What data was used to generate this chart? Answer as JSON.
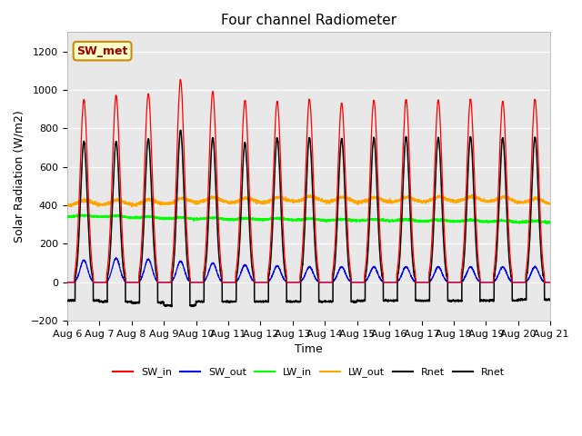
{
  "title": "Four channel Radiometer",
  "xlabel": "Time",
  "ylabel": "Solar Radiation (W/m2)",
  "ylim": [
    -200,
    1300
  ],
  "yticks": [
    -200,
    0,
    200,
    400,
    600,
    800,
    1000,
    1200
  ],
  "num_days": 15,
  "points_per_day": 288,
  "background_color": "#ffffff",
  "plot_bg_color": "#e8e8e8",
  "annotation_text": "SW_met",
  "annotation_facecolor": "#ffffcc",
  "annotation_edgecolor": "#cc8800",
  "annotation_textcolor": "#990000",
  "SW_in_peak": [
    950,
    970,
    980,
    1050,
    990,
    945,
    940,
    950,
    930,
    945,
    950,
    945,
    950,
    940,
    950
  ],
  "SW_out_peak": [
    115,
    125,
    120,
    110,
    100,
    90,
    85,
    80,
    80,
    80,
    80,
    80,
    80,
    80,
    80
  ],
  "LW_in_base": [
    340,
    340,
    335,
    330,
    328,
    325,
    325,
    323,
    320,
    320,
    318,
    316,
    315,
    312,
    310
  ],
  "LW_out_base": [
    400,
    402,
    403,
    407,
    418,
    412,
    416,
    422,
    417,
    416,
    417,
    421,
    421,
    416,
    406
  ],
  "Rnet_peak": [
    730,
    730,
    745,
    790,
    750,
    725,
    750,
    750,
    745,
    750,
    755,
    750,
    755,
    750,
    755
  ],
  "Rnet_night": [
    -95,
    -100,
    -105,
    -120,
    -100,
    -100,
    -100,
    -100,
    -100,
    -95,
    -95,
    -95,
    -95,
    -95,
    -90
  ]
}
